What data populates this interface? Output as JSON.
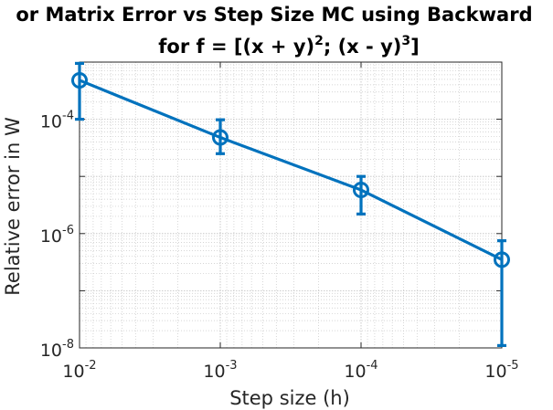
{
  "chart_data": {
    "type": "line",
    "title_line1": "or Matrix Error vs Step Size MC using Backward",
    "title_line2": {
      "pre": "for f = [(x + y)",
      "sup1": "2",
      "mid": "; (x - y)",
      "sup2": "3",
      "post": "]"
    },
    "xlabel": "Step size (h)",
    "ylabel": "Relative error in W",
    "x_scale": "log",
    "y_scale": "log",
    "x_reversed": true,
    "xlim": [
      0.01,
      1e-05
    ],
    "ylim": [
      1e-08,
      0.001
    ],
    "grid": true,
    "minor_grid": true,
    "x_ticks": [
      {
        "value": 0.01,
        "base": "10",
        "exp": "-2"
      },
      {
        "value": 0.001,
        "base": "10",
        "exp": "-3"
      },
      {
        "value": 0.0001,
        "base": "10",
        "exp": "-4"
      },
      {
        "value": 1e-05,
        "base": "10",
        "exp": "-5"
      }
    ],
    "y_ticks": [
      {
        "value": 1e-08,
        "base": "10",
        "exp": "-8"
      },
      {
        "value": 1e-06,
        "base": "10",
        "exp": "-6"
      },
      {
        "value": 0.0001,
        "base": "10",
        "exp": "-4"
      }
    ],
    "series": [
      {
        "color": "#0072BD",
        "marker": "circle",
        "points": [
          {
            "x": 0.01,
            "y": 0.00048,
            "err_low": 0.0001,
            "err_high": 0.00095
          },
          {
            "x": 0.001,
            "y": 4.8e-05,
            "err_low": 2.5e-05,
            "err_high": 9.8e-05
          },
          {
            "x": 0.0001,
            "y": 5.8e-06,
            "err_low": 2.2e-06,
            "err_high": 1e-05
          },
          {
            "x": 1e-05,
            "y": 3.5e-07,
            "err_low": 1.1e-08,
            "err_high": 7.5e-07
          }
        ]
      }
    ]
  }
}
